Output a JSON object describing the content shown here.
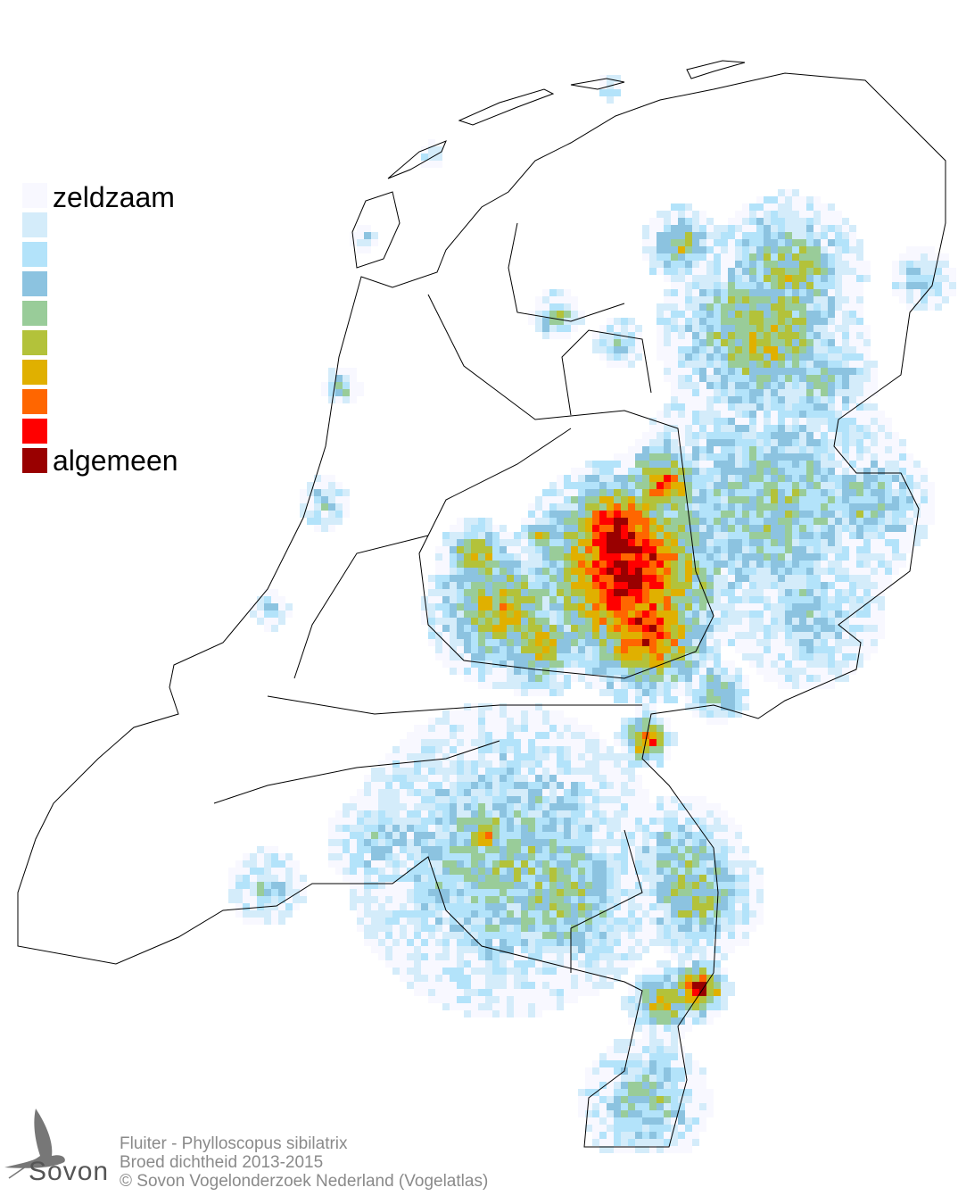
{
  "legend": {
    "top_label": "zeldzaam",
    "bottom_label": "algemeen",
    "colors": [
      "#f8f8ff",
      "#d4ecfa",
      "#b3e3fa",
      "#8cc3e0",
      "#99cc99",
      "#b3c23a",
      "#e0b000",
      "#ff6600",
      "#ff0000",
      "#990000"
    ]
  },
  "caption": {
    "species": "Fluiter - Phylloscopus sibilatrix",
    "subtitle": "Broed dichtheid 2013-2015",
    "copyright": "© Sovon Vogelonderzoek Nederland (Vogelatlas)"
  },
  "logo": {
    "text": "Sovon"
  },
  "map": {
    "outline_color": "#000000",
    "background": "#ffffff"
  }
}
